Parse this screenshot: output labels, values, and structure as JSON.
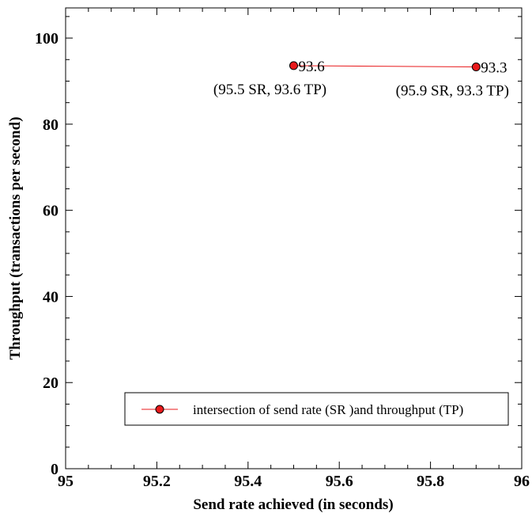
{
  "chart_data": {
    "type": "line",
    "xlabel": "Send rate achieved (in seconds)",
    "ylabel": "Throughput (transactions per second)",
    "xlim": [
      95,
      96
    ],
    "ylim": [
      0,
      107
    ],
    "x_ticks": [
      "95",
      "95.2",
      "95.4",
      "95.6",
      "95.8",
      "96"
    ],
    "y_ticks": [
      "0",
      "20",
      "40",
      "60",
      "80",
      "100"
    ],
    "series": [
      {
        "name": "intersection of send rate (SR )and throughput (TP)",
        "color": "#e8191b",
        "marker": "circle",
        "x": [
          95.5,
          95.9
        ],
        "y": [
          93.6,
          93.3
        ],
        "point_labels": [
          "93.6",
          "93.3"
        ]
      }
    ],
    "annotations": [
      {
        "text": "(95.5 SR, 93.6 TP)",
        "x": 95.5,
        "y": 93.6
      },
      {
        "text": "(95.9 SR, 93.3 TP)",
        "x": 95.9,
        "y": 93.3
      }
    ],
    "legend_position": "bottom-right",
    "grid": false
  }
}
